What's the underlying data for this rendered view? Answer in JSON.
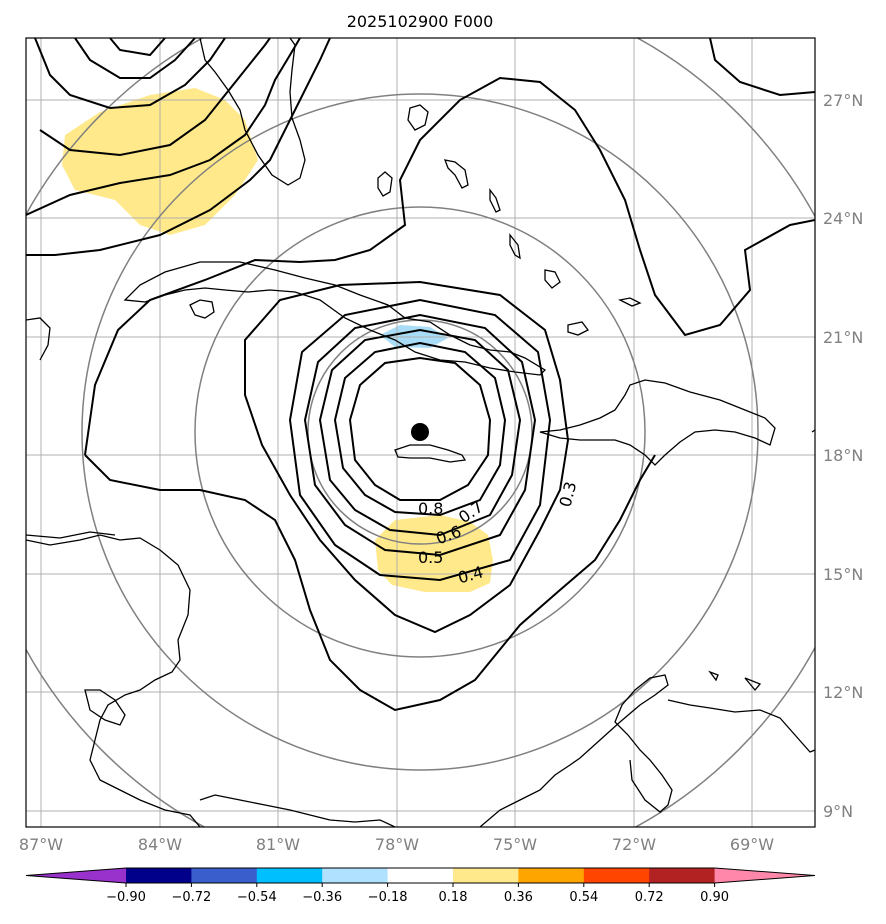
{
  "title": "2025102900 F000",
  "axes": {
    "lat_labels": [
      "27°N",
      "24°N",
      "21°N",
      "18°N",
      "15°N",
      "12°N",
      "9°N"
    ],
    "lon_labels": [
      "87°W",
      "84°W",
      "81°W",
      "78°W",
      "75°W",
      "72°W",
      "69°W"
    ]
  },
  "contour_labels": [
    "0.8",
    "0.7",
    "0.6",
    "0.5",
    "0.4",
    "0.3"
  ],
  "colorbar": {
    "ticks": [
      "−0.90",
      "−0.72",
      "−0.54",
      "−0.36",
      "−0.18",
      "0.18",
      "0.36",
      "0.54",
      "0.72",
      "0.90"
    ],
    "colors": [
      "#9932cc",
      "#00008b",
      "#3a5fcd",
      "#00bfff",
      "#b0e2ff",
      "#ffffff",
      "#ffe98a",
      "#ffa500",
      "#ff4500",
      "#b22222",
      "#ff88aa"
    ]
  },
  "map": {
    "storm_center_color": "#000000",
    "positive_fill": "#ffe98a",
    "negative_fill": "#a9dcf6",
    "grid_color": "#b0b0b0",
    "range_ring_color": "#808080"
  }
}
